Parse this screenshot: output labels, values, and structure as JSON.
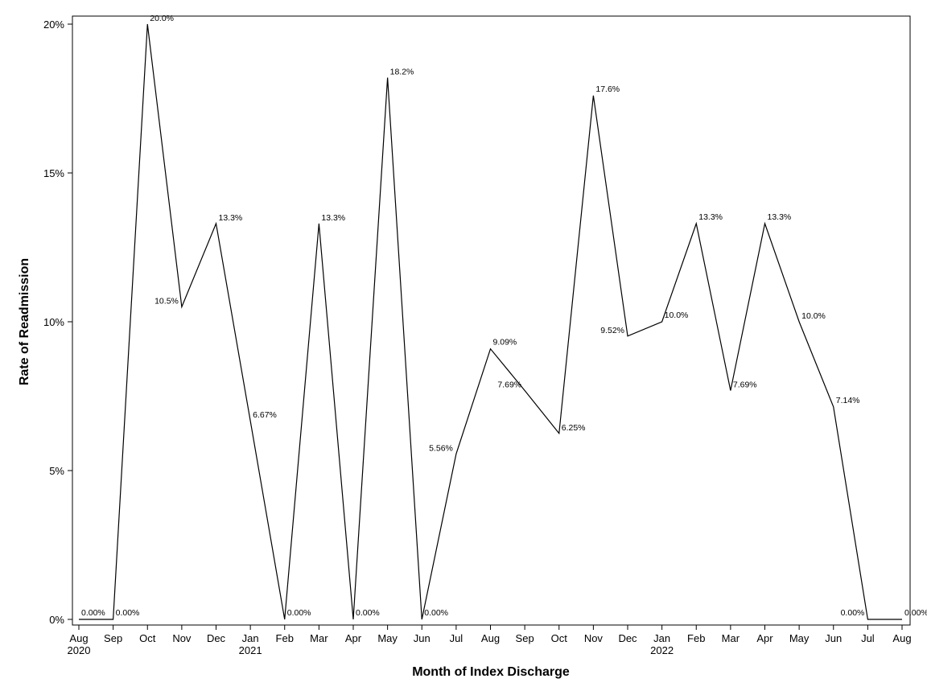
{
  "chart_data": {
    "type": "line",
    "title": "",
    "xlabel": "Month of Index Discharge",
    "ylabel": "Rate of Readmission",
    "ylim": [
      0,
      20
    ],
    "yticks": [
      {
        "value": 0,
        "label": "0%"
      },
      {
        "value": 5,
        "label": "5%"
      },
      {
        "value": 10,
        "label": "10%"
      },
      {
        "value": 15,
        "label": "15%"
      },
      {
        "value": 20,
        "label": "20%"
      }
    ],
    "grid": false,
    "legend": "none",
    "line_color": "#000000",
    "categories": [
      {
        "month": "Aug",
        "year": "2020"
      },
      {
        "month": "Sep",
        "year": ""
      },
      {
        "month": "Oct",
        "year": ""
      },
      {
        "month": "Nov",
        "year": ""
      },
      {
        "month": "Dec",
        "year": ""
      },
      {
        "month": "Jan",
        "year": "2021"
      },
      {
        "month": "Feb",
        "year": ""
      },
      {
        "month": "Mar",
        "year": ""
      },
      {
        "month": "Apr",
        "year": ""
      },
      {
        "month": "May",
        "year": ""
      },
      {
        "month": "Jun",
        "year": ""
      },
      {
        "month": "Jul",
        "year": ""
      },
      {
        "month": "Aug",
        "year": ""
      },
      {
        "month": "Sep",
        "year": ""
      },
      {
        "month": "Oct",
        "year": ""
      },
      {
        "month": "Nov",
        "year": ""
      },
      {
        "month": "Dec",
        "year": ""
      },
      {
        "month": "Jan",
        "year": "2022"
      },
      {
        "month": "Feb",
        "year": ""
      },
      {
        "month": "Mar",
        "year": ""
      },
      {
        "month": "Apr",
        "year": ""
      },
      {
        "month": "May",
        "year": ""
      },
      {
        "month": "Jun",
        "year": ""
      },
      {
        "month": "Jul",
        "year": ""
      },
      {
        "month": "Aug",
        "year": ""
      }
    ],
    "values": [
      0,
      0,
      20.0,
      10.5,
      13.3,
      6.67,
      0,
      13.3,
      0,
      18.2,
      0,
      5.56,
      9.09,
      7.69,
      6.25,
      17.6,
      9.52,
      10.0,
      13.3,
      7.69,
      13.3,
      10.0,
      7.14,
      0,
      0
    ],
    "data_labels": [
      "0.00%",
      "0.00%",
      "20.0%",
      "10.5%",
      "13.3%",
      "6.67%",
      "0.00%",
      "13.3%",
      "0.00%",
      "18.2%",
      "0.00%",
      "5.56%",
      "9.09%",
      "7.69%",
      "6.25%",
      "17.6%",
      "9.52%",
      "10.0%",
      "13.3%",
      "7.69%",
      "13.3%",
      "10.0%",
      "7.14%",
      "0.00%",
      "0.00%"
    ]
  }
}
